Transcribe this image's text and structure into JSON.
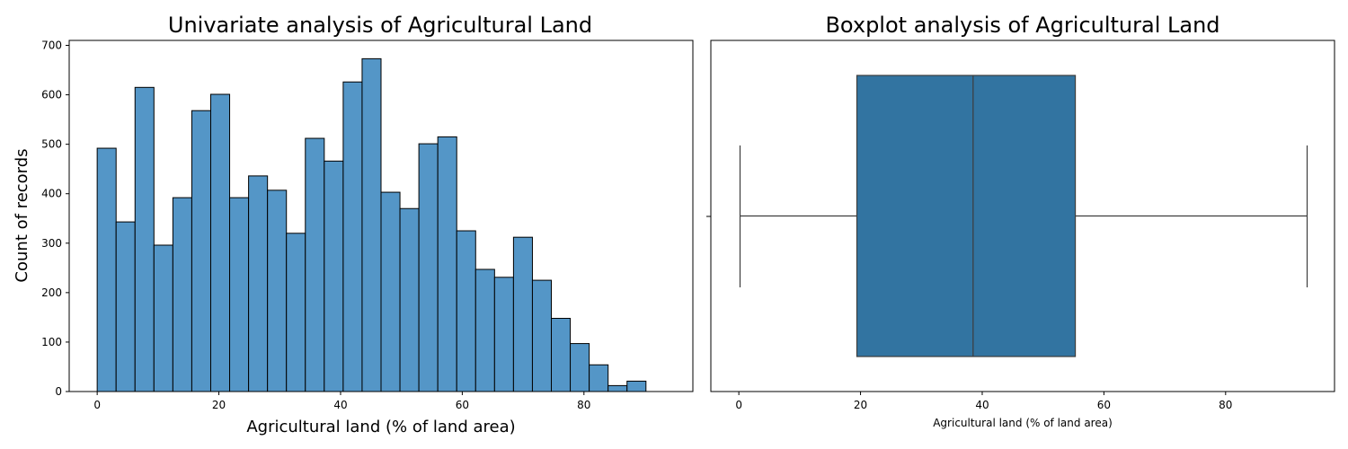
{
  "chart_data": [
    {
      "type": "bar",
      "subtype": "histogram",
      "title": "Univariate analysis of Agricultural Land",
      "xlabel": "Agricultural land (% of land area)",
      "ylabel": "Count of records",
      "xlim": [
        -4.6,
        97.9
      ],
      "ylim": [
        0,
        710
      ],
      "xticks": [
        0,
        20,
        40,
        60,
        80
      ],
      "yticks": [
        0,
        100,
        200,
        300,
        400,
        500,
        600,
        700
      ],
      "bin_start": 0,
      "bin_width": 3.11,
      "values": [
        492,
        343,
        615,
        296,
        392,
        568,
        601,
        392,
        436,
        407,
        320,
        512,
        466,
        626,
        673,
        403,
        370,
        501,
        515,
        325,
        247,
        231,
        312,
        225,
        148,
        97,
        54,
        12,
        21
      ],
      "bar_color": "#5496c7",
      "edge_color": "#000000"
    },
    {
      "type": "boxplot",
      "title": "Boxplot analysis of Agricultural Land",
      "xlabel": "Agricultural land (% of land area)",
      "ylabel": "",
      "xlim": [
        -4.6,
        97.9
      ],
      "xticks": [
        0,
        20,
        40,
        60,
        80
      ],
      "stats": {
        "whisker_low": 0.2,
        "q1": 19.4,
        "median": 38.5,
        "q3": 55.3,
        "whisker_high": 93.4
      },
      "box_color": "#3274a1",
      "line_color": "#3d3d3d"
    }
  ]
}
